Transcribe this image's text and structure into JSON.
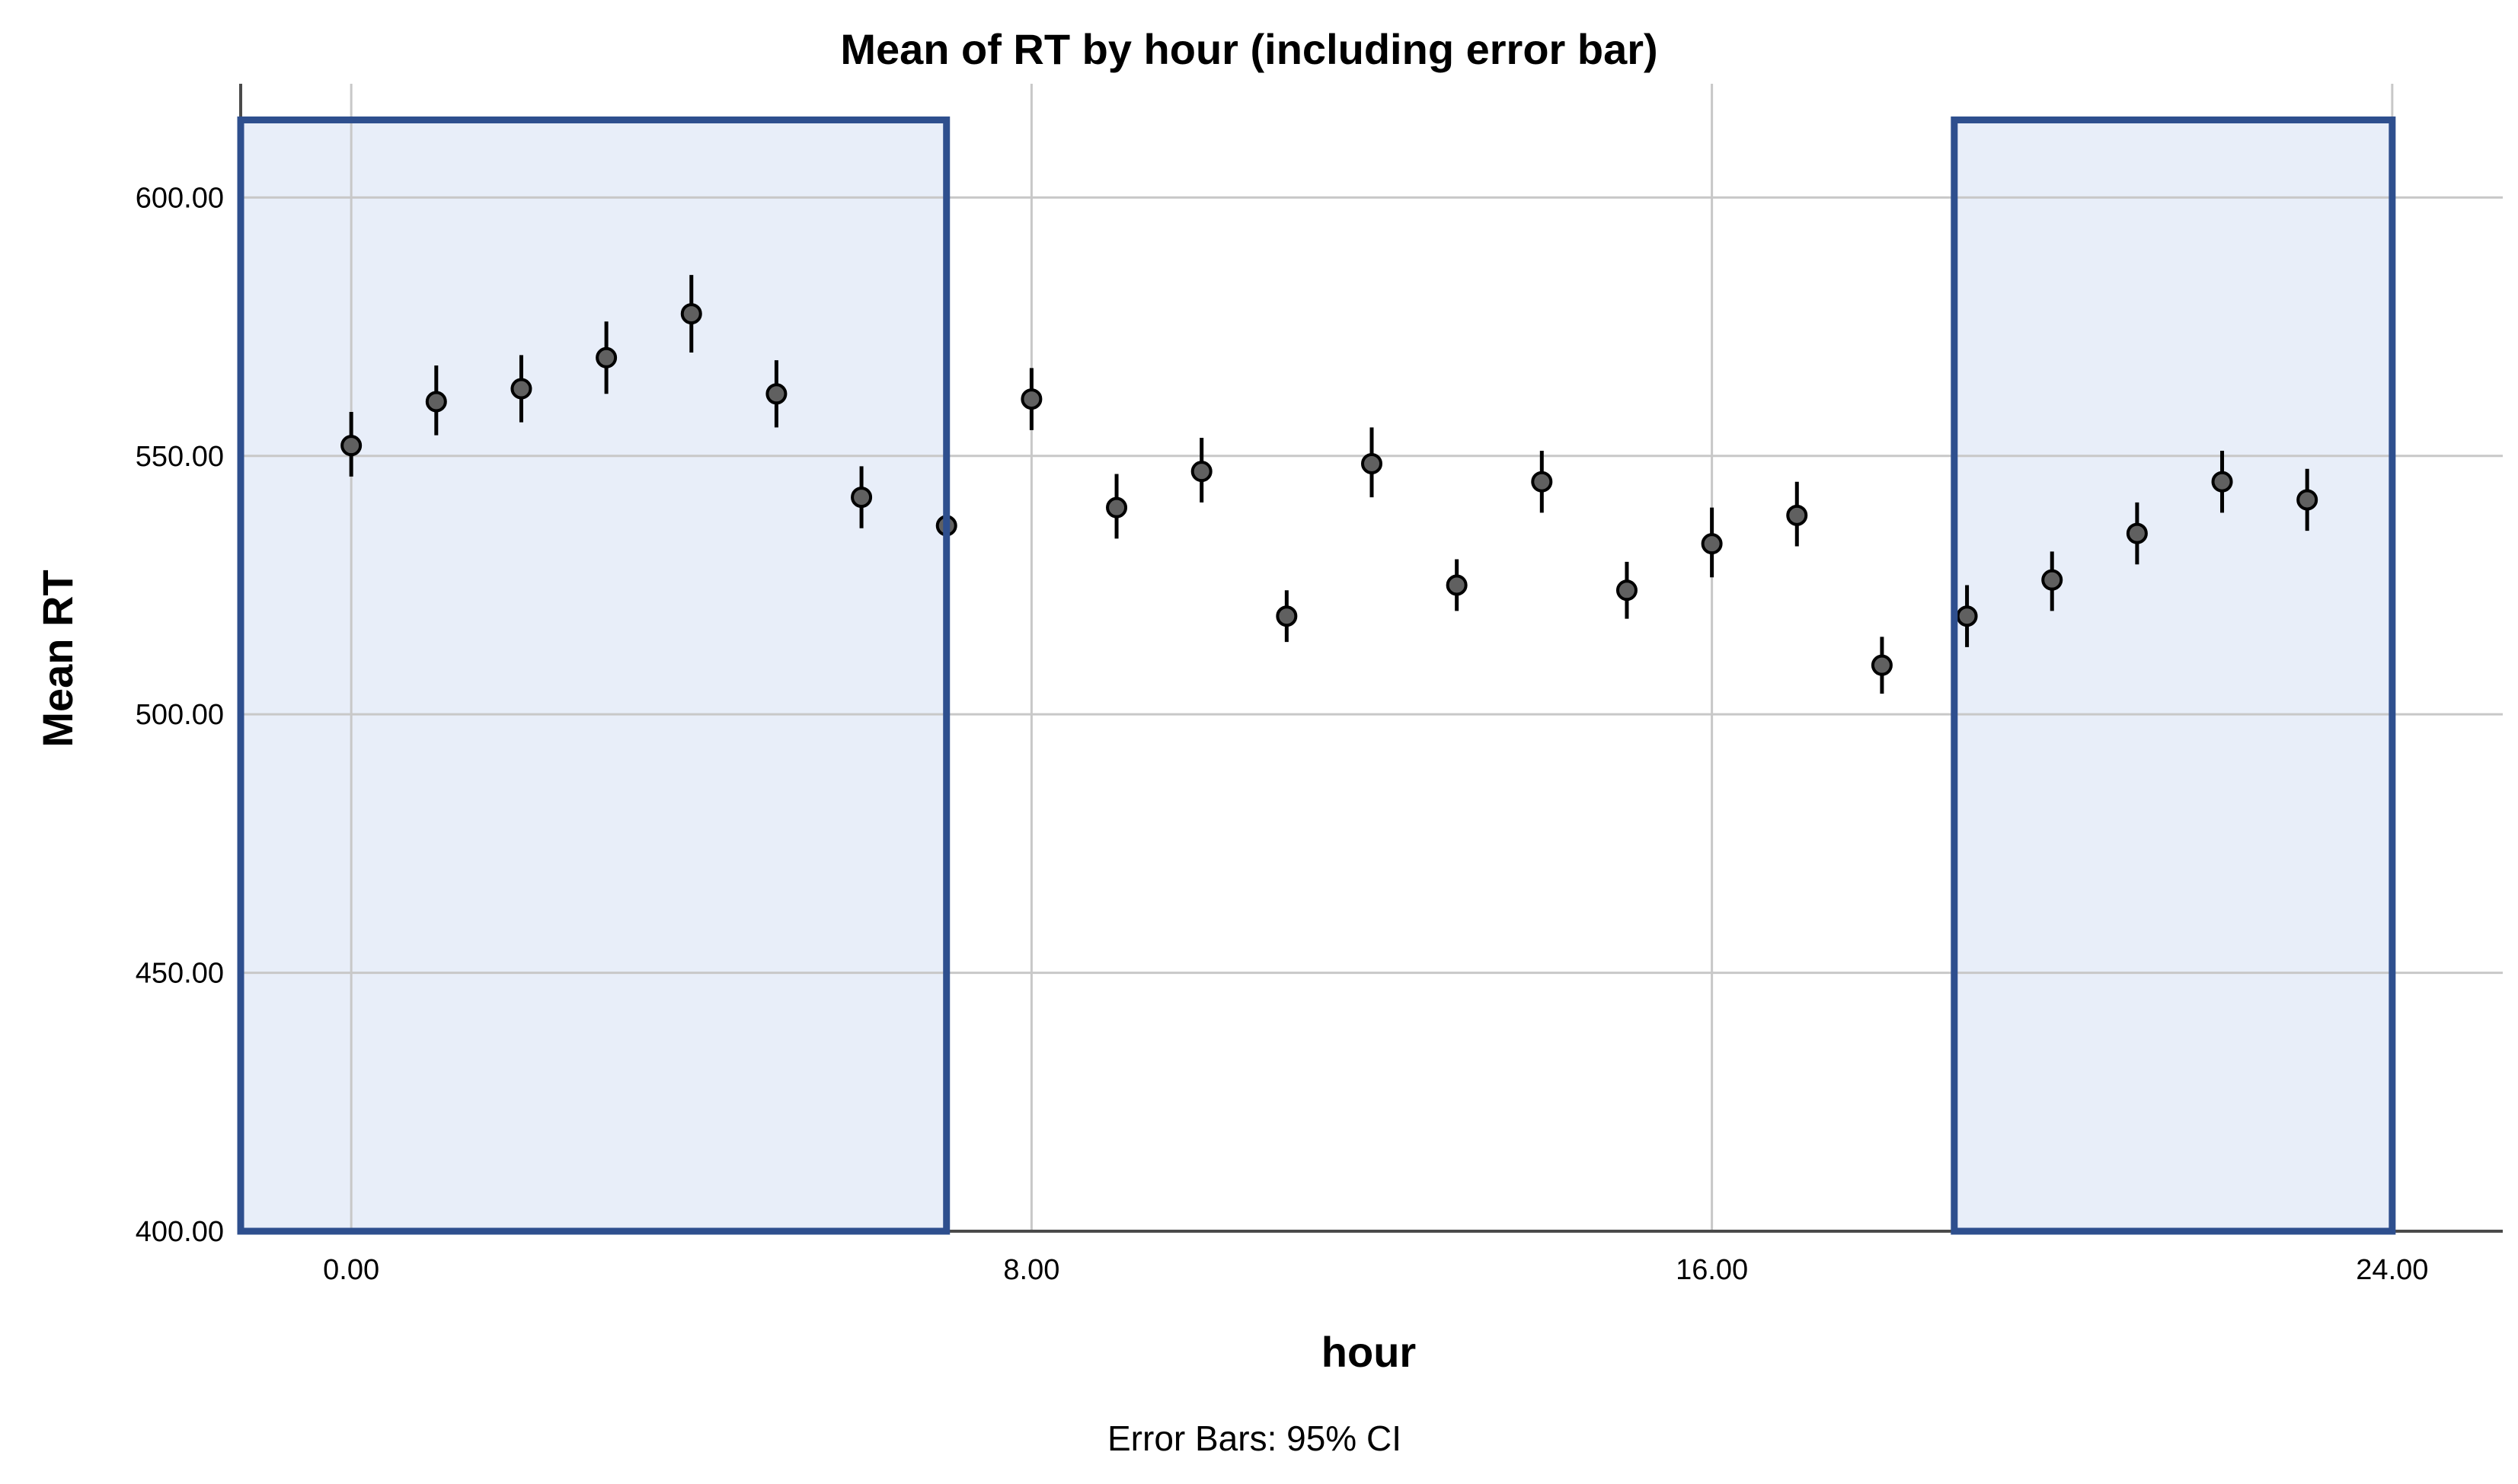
{
  "chart_data": {
    "type": "scatter",
    "title": "Mean of RT by hour (including error bar)",
    "xlabel": "hour",
    "ylabel": "Mean RT",
    "footnote": "Error Bars: 95% CI",
    "xlim": [
      -1.3,
      25.3
    ],
    "ylim": [
      400,
      622
    ],
    "x_ticks": [
      0,
      8,
      16,
      24
    ],
    "x_tick_labels": [
      "0.00",
      "8.00",
      "16.00",
      "24.00"
    ],
    "y_ticks": [
      400,
      450,
      500,
      550,
      600
    ],
    "y_tick_labels": [
      "400.00",
      "450.00",
      "500.00",
      "550.00",
      "600.00"
    ],
    "grid": true,
    "series": [
      {
        "x": [
          0,
          1,
          2,
          3,
          4,
          5,
          6,
          7,
          8,
          9,
          10,
          11,
          12,
          13,
          14,
          15,
          16,
          17,
          18,
          19,
          20,
          21,
          22,
          23
        ],
        "mean": [
          552,
          560.5,
          563,
          569,
          577.5,
          562,
          542,
          536.5,
          561,
          540,
          547,
          519,
          548.5,
          525,
          545,
          524,
          533,
          538.5,
          509.5,
          519,
          526,
          535,
          545,
          541.5
        ],
        "ci_low": [
          546,
          554,
          556.5,
          562,
          570,
          555.5,
          536,
          530,
          555,
          534,
          541,
          514,
          542,
          520,
          539,
          518.5,
          526.5,
          532.5,
          504,
          513,
          520,
          529,
          539,
          535.5
        ],
        "ci_high": [
          558.5,
          567.5,
          569.5,
          576,
          585,
          568.5,
          548,
          543,
          567,
          546.5,
          553.5,
          524,
          555.5,
          530,
          551,
          529.5,
          540,
          545,
          515,
          525,
          531.5,
          541,
          551,
          547.5
        ]
      }
    ],
    "highlight_regions": [
      {
        "x_start": -1.3,
        "x_end": 7.0,
        "y_top": 615
      },
      {
        "x_start": 18.85,
        "x_end": 24.0,
        "y_top": 615
      }
    ],
    "colors": {
      "highlight_fill": "#e8eef9",
      "highlight_stroke": "#2e4f8e",
      "grid": "#c8c8c8",
      "axis": "#4a4a4a",
      "marker_fill": "#606060",
      "marker_stroke": "#000000",
      "error_bar": "#000000"
    }
  }
}
